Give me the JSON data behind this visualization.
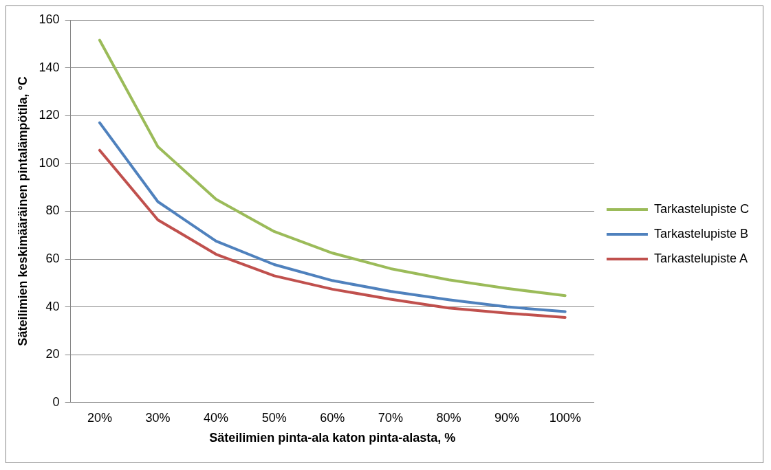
{
  "chart_data": {
    "type": "line",
    "xlabel": "Säteilimien pinta-ala katon pinta-alasta, %",
    "ylabel": "Säteilimien keskimääräinen pintalämpötila, °C",
    "categories": [
      "20%",
      "30%",
      "40%",
      "50%",
      "60%",
      "70%",
      "80%",
      "90%",
      "100%"
    ],
    "series": [
      {
        "name": "Tarkastelupiste C",
        "color": "#9bbb59",
        "values": [
          151.5,
          107,
          85,
          71.5,
          62.5,
          56,
          51.3,
          47.7,
          44.7
        ]
      },
      {
        "name": "Tarkastelupiste B",
        "color": "#4f81bd",
        "values": [
          117,
          84,
          67.5,
          57.7,
          51,
          46.5,
          43,
          40,
          38
        ]
      },
      {
        "name": "Tarkastelupiste A",
        "color": "#c0504d",
        "values": [
          105.5,
          76.4,
          62,
          53,
          47.4,
          43.2,
          39.5,
          37.4,
          35.6
        ]
      }
    ],
    "ylim": [
      0,
      160
    ],
    "yticks": [
      0,
      20,
      40,
      60,
      80,
      100,
      120,
      140,
      160
    ],
    "grid": "y",
    "legend": "right",
    "marker": "none",
    "line_style": "solid"
  }
}
